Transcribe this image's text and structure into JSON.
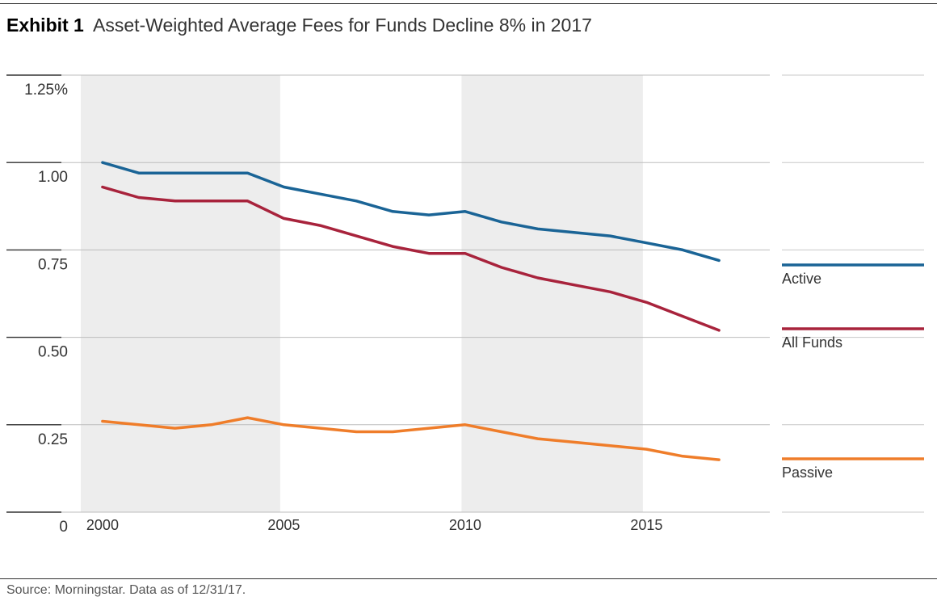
{
  "header": {
    "exhibit": "Exhibit 1",
    "title": "Asset-Weighted Average Fees for Funds Decline 8% in 2017"
  },
  "footer": {
    "source": "Source: Morningstar. Data as of 12/31/17."
  },
  "chart_data": {
    "type": "line",
    "title": "Asset-Weighted Average Fees for Funds Decline 8% in 2017",
    "xlabel": "",
    "ylabel": "",
    "xlim": [
      1999.4,
      2018.4
    ],
    "ylim": [
      0,
      1.25
    ],
    "x_ticks": [
      2000,
      2005,
      2010,
      2015
    ],
    "x_tick_labels": [
      "2000",
      "2005",
      "2010",
      "2015"
    ],
    "y_ticks": [
      0,
      0.25,
      0.5,
      0.75,
      1.0,
      1.25
    ],
    "y_tick_labels": [
      "0",
      "0.25",
      "0.50",
      "0.75",
      "1.00",
      "1.25%"
    ],
    "shaded_bands": [
      [
        1999.4,
        2004.9
      ],
      [
        2009.9,
        2014.9
      ]
    ],
    "grid": true,
    "legend": "right",
    "x": [
      2000,
      2001,
      2002,
      2003,
      2004,
      2005,
      2006,
      2007,
      2008,
      2009,
      2010,
      2011,
      2012,
      2013,
      2014,
      2015,
      2016,
      2017
    ],
    "series": [
      {
        "name": "Active",
        "color": "#1a6496",
        "values": [
          1.0,
          0.97,
          0.97,
          0.97,
          0.97,
          0.93,
          0.91,
          0.89,
          0.86,
          0.85,
          0.86,
          0.83,
          0.81,
          0.8,
          0.79,
          0.77,
          0.75,
          0.72
        ]
      },
      {
        "name": "All Funds",
        "color": "#a8233c",
        "values": [
          0.93,
          0.9,
          0.89,
          0.89,
          0.89,
          0.84,
          0.82,
          0.79,
          0.76,
          0.74,
          0.74,
          0.7,
          0.67,
          0.65,
          0.63,
          0.6,
          0.56,
          0.52
        ]
      },
      {
        "name": "Passive",
        "color": "#ef7d2a",
        "values": [
          0.26,
          0.25,
          0.24,
          0.25,
          0.27,
          0.25,
          0.24,
          0.23,
          0.23,
          0.24,
          0.25,
          0.23,
          0.21,
          0.2,
          0.19,
          0.18,
          0.16,
          0.15
        ]
      }
    ]
  }
}
